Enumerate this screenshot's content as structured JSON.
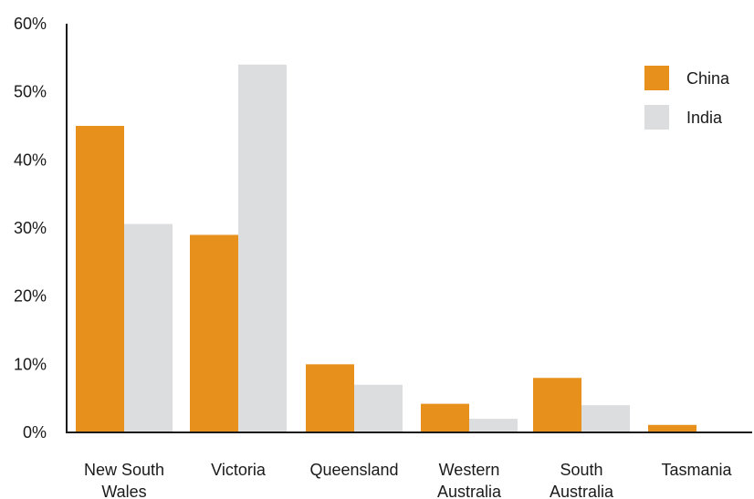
{
  "chart_data": {
    "type": "bar",
    "title": "",
    "xlabel": "",
    "ylabel": "",
    "categories": [
      [
        "New South",
        "Wales"
      ],
      [
        "Victoria"
      ],
      [
        "Queensland"
      ],
      [
        "Western",
        "Australia"
      ],
      [
        "South",
        "Australia"
      ],
      [
        "Tasmania"
      ]
    ],
    "series": [
      {
        "name": "China",
        "color": "#e8901c",
        "values": [
          45,
          29,
          10,
          4.2,
          8,
          1.1
        ]
      },
      {
        "name": "India",
        "color": "#dcdddf",
        "values": [
          30.6,
          54,
          7,
          2,
          4,
          0
        ]
      }
    ],
    "ylim": [
      0,
      60
    ],
    "yticks": [
      0,
      10,
      20,
      30,
      40,
      50,
      60
    ],
    "ytick_labels": [
      "0%",
      "10%",
      "20%",
      "30%",
      "40%",
      "50%",
      "60%"
    ],
    "grid": false,
    "legend_position": "top-right"
  }
}
